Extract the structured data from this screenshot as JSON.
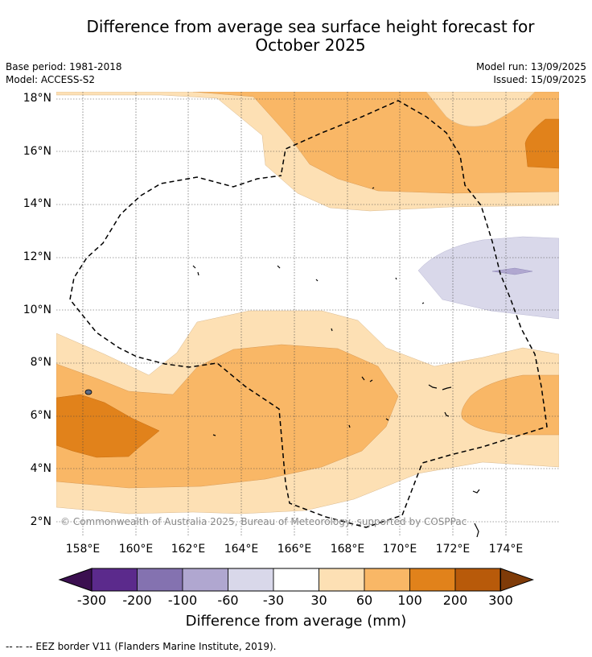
{
  "title": "Difference from average sea surface height forecast for October 2025",
  "title_lines": [
    "Difference from average sea surface height forecast for",
    "October 2025"
  ],
  "base_period": "Base period: 1981-2018",
  "model": "Model: ACCESS-S2",
  "model_run": "Model run: 13/09/2025",
  "issued": "Issued: 15/09/2025",
  "copyright": "© Commonwealth of Australia 2025, Bureau of Meteorology, supported by COSPPac",
  "lat_labels": [
    "18°N",
    "16°N",
    "14°N",
    "12°N",
    "10°N",
    "8°N",
    "6°N",
    "4°N",
    "2°N"
  ],
  "lon_labels": [
    "158°E",
    "160°E",
    "162°E",
    "164°E",
    "166°E",
    "168°E",
    "170°E",
    "172°E",
    "174°E"
  ],
  "colorbar": {
    "ticks": [
      "-300",
      "-200",
      "-100",
      "-60",
      "-30",
      "30",
      "60",
      "100",
      "200",
      "300"
    ],
    "colors": [
      "#3b0f50",
      "#5b2a8c",
      "#8472b0",
      "#b0a7d0",
      "#d9d8ea",
      "#ffffff",
      "#fde0b4",
      "#f9b766",
      "#e1821b",
      "#b85a0a",
      "#7f3b08"
    ],
    "title": "Difference from average (mm)"
  },
  "eez_legend": "--  --  -- EEZ border V11 (Flanders Marine Institute, 2019)."
}
